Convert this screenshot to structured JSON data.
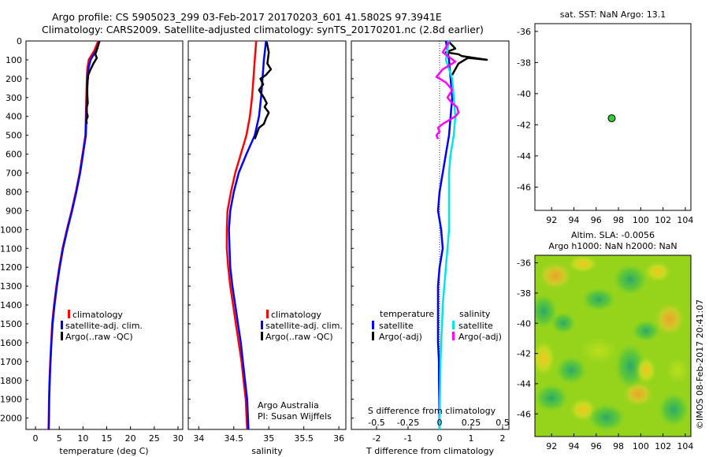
{
  "header": {
    "title_line1": "Argo profile: CS 5905023_299 03-Feb-2017 20170203_601 41.5802S 97.3941E",
    "title_line2": "Climatology: CARS2009. Satellite-adjusted climatology: synTS_20170201.nc (2.8d earlier)"
  },
  "colors": {
    "climatology": "#ff0000",
    "satellite_adj": "#0000ff",
    "argo": "#000000",
    "sal_satellite": "#00e5e5",
    "sal_argo": "#ff00ff",
    "float_marker": "#33cc33"
  },
  "credits": {
    "line1": "Argo Australia",
    "line2": "PI: Susan Wijffels",
    "stamp": "©IMOS 08-Feb-2017 20:41:07"
  },
  "chart_data": [
    {
      "id": "temperature",
      "type": "line",
      "xlabel": "temperature (deg C)",
      "ylabel": "",
      "xlim": [
        -2,
        31
      ],
      "ylim": [
        2060,
        0
      ],
      "xticks": [
        0,
        5,
        10,
        15,
        20,
        25,
        30
      ],
      "yticks": [
        0,
        100,
        200,
        300,
        400,
        500,
        600,
        700,
        800,
        900,
        1000,
        1100,
        1200,
        1300,
        1400,
        1500,
        1600,
        1700,
        1800,
        1900,
        2000
      ],
      "legend": [
        "climatology",
        "satellite-adj. clim.",
        "Argo(..raw -QC)"
      ],
      "series": [
        {
          "name": "climatology",
          "color_key": "climatology",
          "x": [
            13.2,
            12.4,
            11.2,
            10.9,
            10.8,
            10.7,
            10.6,
            10.5,
            10.2,
            9.9,
            9.3,
            8.5,
            7.6,
            6.6,
            5.7,
            5.0,
            4.4,
            3.9,
            3.5,
            3.3,
            3.1,
            2.95,
            2.85,
            2.8,
            2.75,
            2.7,
            2.7
          ],
          "y": [
            0,
            50,
            100,
            150,
            200,
            300,
            400,
            500,
            550,
            600,
            700,
            800,
            900,
            1000,
            1100,
            1200,
            1300,
            1400,
            1500,
            1600,
            1700,
            1800,
            1900,
            2000,
            2060,
            2060,
            2060
          ]
        },
        {
          "name": "satellite-adj. clim.",
          "color_key": "satellite_adj",
          "x": [
            13.5,
            12.8,
            11.6,
            11.1,
            11.0,
            10.8,
            10.7,
            10.6,
            10.3,
            10.0,
            9.4,
            8.6,
            7.7,
            6.7,
            5.8,
            5.1,
            4.5,
            4.0,
            3.6,
            3.35,
            3.15,
            3.0,
            2.9,
            2.85,
            2.8
          ],
          "y": [
            0,
            50,
            100,
            150,
            200,
            300,
            400,
            500,
            550,
            600,
            700,
            800,
            900,
            1000,
            1100,
            1200,
            1300,
            1400,
            1500,
            1600,
            1700,
            1800,
            1900,
            2000,
            2060
          ]
        },
        {
          "name": "Argo(..raw -QC)",
          "color_key": "argo",
          "x": [
            13.4,
            13.0,
            12.6,
            12.9,
            12.2,
            11.6,
            11.1,
            10.9,
            10.9,
            11.0,
            10.8,
            10.8,
            11.0,
            10.7,
            10.8
          ],
          "y": [
            5,
            40,
            70,
            90,
            120,
            150,
            180,
            230,
            280,
            330,
            350,
            380,
            400,
            420,
            440
          ]
        }
      ]
    },
    {
      "id": "salinity",
      "type": "line",
      "xlabel": "salinity",
      "ylabel": "",
      "xlim": [
        33.85,
        36.1
      ],
      "ylim": [
        2060,
        0
      ],
      "xticks": [
        34,
        34.5,
        35,
        35.5,
        36
      ],
      "legend": [
        "climatology",
        "satellite-adj. clim.",
        "Argo(..raw -QC)"
      ],
      "series": [
        {
          "name": "climatology",
          "color_key": "climatology",
          "x": [
            34.82,
            34.8,
            34.78,
            34.76,
            34.73,
            34.68,
            34.6,
            34.52,
            34.46,
            34.41,
            34.4,
            34.4,
            34.42,
            34.45,
            34.49,
            34.53,
            34.57,
            34.61,
            34.64,
            34.67,
            34.69
          ],
          "y": [
            0,
            100,
            200,
            300,
            400,
            500,
            600,
            700,
            800,
            900,
            1000,
            1100,
            1200,
            1300,
            1400,
            1500,
            1600,
            1700,
            1800,
            1900,
            2060
          ]
        },
        {
          "name": "satellite-adj. clim.",
          "color_key": "satellite_adj",
          "x": [
            34.96,
            34.93,
            34.91,
            34.89,
            34.86,
            34.8,
            34.68,
            34.57,
            34.5,
            34.45,
            34.43,
            34.44,
            34.45,
            34.48,
            34.52,
            34.56,
            34.6,
            34.63,
            34.66,
            34.69,
            34.71
          ],
          "y": [
            0,
            100,
            200,
            300,
            400,
            500,
            600,
            700,
            800,
            900,
            1000,
            1100,
            1200,
            1300,
            1400,
            1500,
            1600,
            1700,
            1800,
            1900,
            2060
          ]
        },
        {
          "name": "Argo(..raw -QC)",
          "color_key": "argo",
          "x": [
            34.97,
            35.0,
            34.98,
            35.03,
            34.96,
            34.88,
            34.92,
            34.86,
            34.93,
            34.97,
            34.94,
            35.0,
            34.96,
            34.93,
            34.86,
            34.83,
            34.8
          ],
          "y": [
            5,
            60,
            120,
            150,
            180,
            200,
            230,
            260,
            300,
            330,
            350,
            380,
            410,
            440,
            460,
            490,
            520
          ]
        }
      ]
    },
    {
      "id": "difference",
      "type": "line",
      "xlabel": "T difference from climatology",
      "xlabel_top": "S difference from climatology",
      "xlim": [
        -2.8,
        2.2
      ],
      "ylim": [
        2060,
        0
      ],
      "xticks": [
        -2,
        -1,
        0,
        1,
        2
      ],
      "xticks_top": [
        "-0.5",
        "-0.25",
        "0",
        "0.25",
        "0.5"
      ],
      "xticks_top_pos": [
        -2,
        -1,
        0,
        1,
        2
      ],
      "legend_headers": [
        "temperature",
        "salinity"
      ],
      "legend": [
        "satellite",
        "Argo(-adj)",
        "satellite",
        "Argo(-adj)"
      ],
      "series": [
        {
          "name": "satellite",
          "group": "temperature",
          "color_key": "satellite_adj",
          "x": [
            0.2,
            0.3,
            0.35,
            0.4,
            0.35,
            0.3,
            0.2,
            0.1,
            0.0,
            -0.05,
            0.05,
            0.1,
            0.0,
            -0.05,
            -0.05,
            -0.05,
            -0.05,
            -0.02,
            -0.02,
            -0.01,
            0.0
          ],
          "y": [
            0,
            100,
            200,
            300,
            400,
            500,
            600,
            700,
            800,
            900,
            1000,
            1100,
            1200,
            1300,
            1400,
            1500,
            1600,
            1700,
            1800,
            1900,
            2060
          ]
        },
        {
          "name": "Argo(-adj)",
          "group": "temperature",
          "color_key": "argo",
          "x": [
            0.3,
            0.5,
            0.2,
            0.6,
            0.7,
            1.5,
            0.9,
            0.6,
            0.5,
            0.4
          ],
          "y": [
            5,
            40,
            60,
            70,
            80,
            100,
            90,
            120,
            150,
            180
          ]
        },
        {
          "name": "satellite",
          "group": "salinity",
          "color_key": "sal_satellite",
          "x": [
            0.3,
            0.2,
            0.4,
            0.45,
            0.5,
            0.45,
            0.35,
            0.3,
            0.3,
            0.3,
            0.3,
            0.25,
            0.2,
            0.15,
            0.1,
            0.08,
            0.05,
            0.03,
            0.02,
            0.01,
            0.0
          ],
          "y": [
            0,
            100,
            200,
            300,
            400,
            500,
            600,
            700,
            800,
            900,
            1000,
            1100,
            1200,
            1300,
            1400,
            1500,
            1600,
            1700,
            1800,
            1900,
            2060
          ]
        },
        {
          "name": "Argo(-adj)",
          "group": "salinity",
          "color_key": "sal_argo",
          "x": [
            0.3,
            0.1,
            0.5,
            0.1,
            -0.1,
            0.2,
            0.4,
            0.25,
            0.4,
            0.55,
            0.6,
            0.5,
            0.3,
            0.1,
            -0.05,
            0.0,
            -0.1,
            -0.05
          ],
          "y": [
            5,
            60,
            110,
            150,
            190,
            220,
            260,
            300,
            330,
            350,
            380,
            400,
            420,
            440,
            460,
            480,
            500,
            520
          ]
        }
      ]
    },
    {
      "id": "sst_map",
      "type": "scatter",
      "title": "sat. SST: NaN Argo: 13.1",
      "xlim": [
        90.5,
        104.5
      ],
      "ylim": [
        -47.5,
        -35.5
      ],
      "xticks": [
        92,
        94,
        96,
        98,
        100,
        102,
        104
      ],
      "yticks": [
        -36,
        -38,
        -40,
        -42,
        -44,
        -46
      ],
      "points": [
        {
          "x": 97.3941,
          "y": -41.5802
        }
      ]
    },
    {
      "id": "sla_map",
      "type": "heatmap",
      "title_line1": "Altim. SLA: -0.0056",
      "title_line2": "Argo h1000: NaN h2000: NaN",
      "xlim": [
        90.5,
        104.5
      ],
      "ylim": [
        -47.5,
        -35.5
      ],
      "xticks": [
        92,
        94,
        96,
        98,
        100,
        102,
        104
      ],
      "yticks": [
        -36,
        -38,
        -40,
        -42,
        -44,
        -46
      ]
    }
  ]
}
